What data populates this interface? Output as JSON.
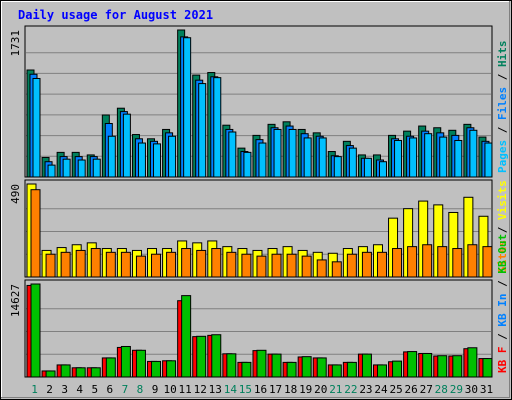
{
  "title": "Daily usage for August 2021",
  "colors": {
    "background": "#c0c0c0",
    "title_text": "#0000ff",
    "hits": "#00805c",
    "files": "#0080ff",
    "pages": "#00c0ff",
    "visits": "#ffff00",
    "sites": "#ff8000",
    "kb_out": "#ff0000",
    "kb_in": "#00c000",
    "weekend_label": "#00805c",
    "weekday_label": "#000000"
  },
  "chart_data": [
    {
      "type": "bar",
      "name": "hits-files-pages",
      "ymax_label": "1731",
      "ylim": [
        0,
        1731
      ],
      "legend": [
        {
          "label": "Pages",
          "color": "#00c0ff"
        },
        {
          "label": "Files",
          "color": "#0080ff"
        },
        {
          "label": "Hits",
          "color": "#00805c"
        }
      ],
      "categories": [
        "1",
        "2",
        "3",
        "4",
        "5",
        "6",
        "7",
        "8",
        "9",
        "10",
        "11",
        "12",
        "13",
        "14",
        "15",
        "16",
        "17",
        "18",
        "19",
        "20",
        "21",
        "22",
        "23",
        "24",
        "25",
        "26",
        "27",
        "28",
        "29",
        "30",
        "31"
      ],
      "weekend_days": [
        "1",
        "7",
        "8",
        "14",
        "15",
        "21",
        "22",
        "28",
        "29"
      ],
      "series": [
        {
          "name": "Hits",
          "values": [
            1260,
            230,
            290,
            290,
            260,
            730,
            810,
            500,
            450,
            560,
            1731,
            1200,
            1230,
            610,
            340,
            490,
            620,
            650,
            560,
            520,
            300,
            420,
            260,
            260,
            490,
            540,
            600,
            580,
            550,
            620,
            470
          ]
        },
        {
          "name": "Files",
          "values": [
            1210,
            180,
            240,
            240,
            240,
            630,
            770,
            450,
            420,
            520,
            1650,
            1140,
            1180,
            560,
            300,
            440,
            580,
            600,
            510,
            480,
            250,
            370,
            220,
            200,
            450,
            480,
            540,
            520,
            490,
            580,
            420
          ]
        },
        {
          "name": "Pages",
          "values": [
            1160,
            140,
            210,
            200,
            210,
            480,
            740,
            400,
            390,
            480,
            1640,
            1100,
            1170,
            530,
            290,
            400,
            560,
            560,
            460,
            460,
            240,
            340,
            220,
            180,
            430,
            460,
            510,
            470,
            430,
            550,
            400
          ]
        }
      ]
    },
    {
      "type": "bar",
      "name": "visits-sites",
      "ymax_label": "490",
      "ylim": [
        0,
        490
      ],
      "legend": [
        {
          "label": "Sites",
          "color": "#ff8000"
        },
        {
          "label": "Visits",
          "color": "#ffff00"
        }
      ],
      "categories": [
        "1",
        "2",
        "3",
        "4",
        "5",
        "6",
        "7",
        "8",
        "9",
        "10",
        "11",
        "12",
        "13",
        "14",
        "15",
        "16",
        "17",
        "18",
        "19",
        "20",
        "21",
        "22",
        "23",
        "24",
        "25",
        "26",
        "27",
        "28",
        "29",
        "30",
        "31"
      ],
      "series": [
        {
          "name": "Visits",
          "values": [
            490,
            140,
            155,
            170,
            180,
            150,
            150,
            140,
            150,
            150,
            190,
            180,
            190,
            160,
            150,
            140,
            150,
            160,
            140,
            130,
            125,
            150,
            160,
            170,
            310,
            360,
            400,
            380,
            340,
            420,
            320
          ]
        },
        {
          "name": "Sites",
          "values": [
            460,
            120,
            130,
            140,
            150,
            130,
            130,
            110,
            120,
            130,
            150,
            140,
            150,
            130,
            120,
            110,
            120,
            120,
            110,
            90,
            80,
            120,
            130,
            130,
            150,
            160,
            170,
            160,
            150,
            170,
            160
          ]
        }
      ]
    },
    {
      "type": "bar",
      "name": "kb-in-out",
      "ymax_label": "14627",
      "ylim": [
        0,
        14627
      ],
      "legend": [
        {
          "label": "KB F",
          "color": "#ff0000"
        },
        {
          "label": "KB In",
          "color": "#0080ff"
        },
        {
          "label": "KB Out",
          "color": "#00c000"
        }
      ],
      "categories": [
        "1",
        "2",
        "3",
        "4",
        "5",
        "6",
        "7",
        "8",
        "9",
        "10",
        "11",
        "12",
        "13",
        "14",
        "15",
        "16",
        "17",
        "18",
        "19",
        "20",
        "21",
        "22",
        "23",
        "24",
        "25",
        "26",
        "27",
        "28",
        "29",
        "30",
        "31"
      ],
      "series": [
        {
          "name": "KB F",
          "values": [
            14400,
            950,
            1900,
            1450,
            1450,
            3000,
            4650,
            4200,
            2450,
            2550,
            12000,
            6350,
            6550,
            3650,
            2300,
            4150,
            3600,
            2300,
            3150,
            3000,
            1900,
            2300,
            3600,
            1900,
            2400,
            3950,
            3700,
            3300,
            3300,
            4450,
            2900
          ]
        },
        {
          "name": "KB Out",
          "values": [
            14627,
            950,
            1900,
            1450,
            1450,
            3000,
            4800,
            4200,
            2450,
            2550,
            12800,
            6400,
            6650,
            3650,
            2300,
            4200,
            3600,
            2300,
            3200,
            3000,
            1900,
            2300,
            3600,
            1900,
            2500,
            4000,
            3700,
            3350,
            3350,
            4600,
            2900
          ]
        }
      ]
    }
  ]
}
